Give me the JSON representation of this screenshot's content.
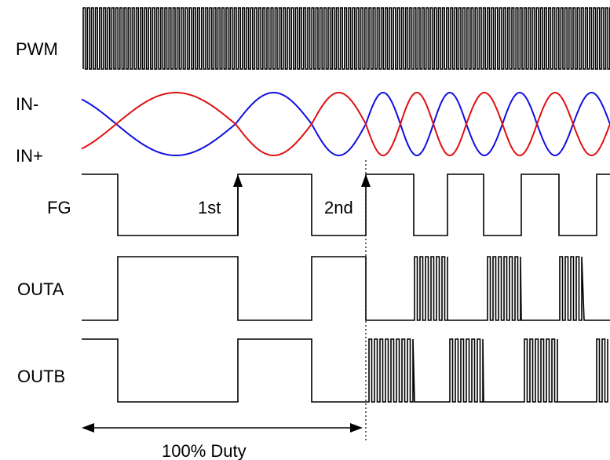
{
  "signals": {
    "pwm": "PWM",
    "in_minus": "IN-",
    "in_plus": "IN+",
    "fg": "FG",
    "outa": "OUTA",
    "outb": "OUTB"
  },
  "annotations": {
    "first": "1st",
    "second": "2nd",
    "duty": "100% Duty"
  },
  "colors": {
    "in_minus": "#1010e0",
    "in_plus": "#e01010",
    "lines": "#000000"
  }
}
